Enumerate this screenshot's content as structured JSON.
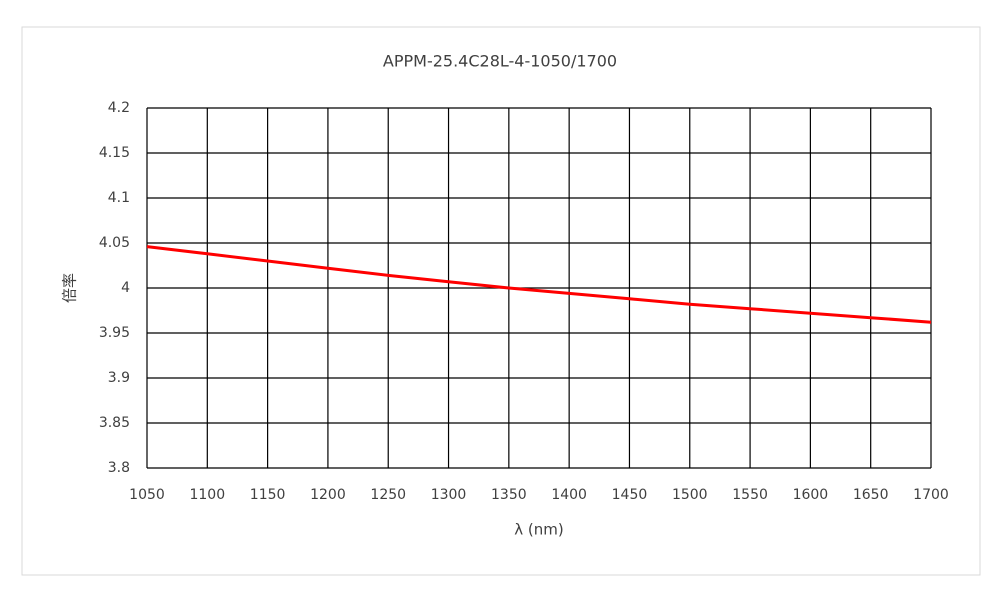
{
  "chart_data": {
    "type": "line",
    "title": "APPM-25.4C28L-4-1050/1700",
    "x_label": "λ (nm)",
    "y_label": "倍率",
    "x": [
      1050,
      1100,
      1150,
      1200,
      1250,
      1300,
      1350,
      1400,
      1450,
      1500,
      1550,
      1600,
      1650,
      1700
    ],
    "series": [
      {
        "color": "#ff0000",
        "values": [
          4.046,
          4.038,
          4.03,
          4.022,
          4.014,
          4.007,
          4.0,
          3.994,
          3.988,
          3.982,
          3.977,
          3.972,
          3.967,
          3.962
        ]
      }
    ],
    "xlim": [
      1050,
      1700
    ],
    "xticks": [
      1050,
      1100,
      1150,
      1200,
      1250,
      1300,
      1350,
      1400,
      1450,
      1500,
      1550,
      1600,
      1650,
      1700
    ],
    "ylim": [
      3.8,
      4.2
    ],
    "yticks": [
      3.8,
      3.85,
      3.9,
      3.95,
      4,
      4.05,
      4.1,
      4.15,
      4.2
    ],
    "grid": true
  }
}
